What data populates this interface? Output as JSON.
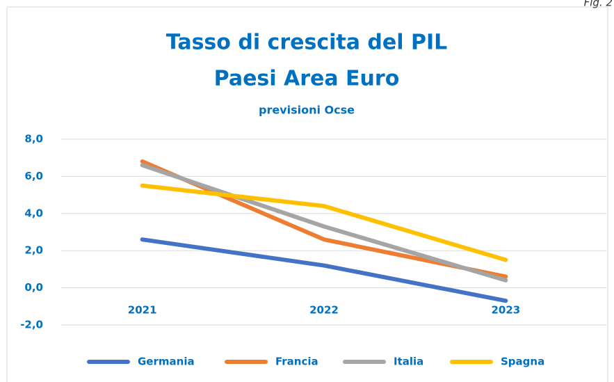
{
  "chart_data": {
    "type": "line",
    "corner_label": "Fig. 2",
    "title": "Tasso di crescita del PIL",
    "title_line2": "Paesi Area Euro",
    "subtitle": "previsioni Ocse",
    "categories": [
      "2021",
      "2022",
      "2023"
    ],
    "series": [
      {
        "name": "Germania",
        "color": "#4472c4",
        "values": [
          2.6,
          1.2,
          -0.7
        ]
      },
      {
        "name": "Francia",
        "color": "#ed7d31",
        "values": [
          6.8,
          2.6,
          0.6
        ]
      },
      {
        "name": "Italia",
        "color": "#a5a5a5",
        "values": [
          6.6,
          3.3,
          0.4
        ]
      },
      {
        "name": "Spagna",
        "color": "#ffc000",
        "values": [
          5.5,
          4.4,
          1.5
        ]
      }
    ],
    "ylim": [
      -2,
      8
    ],
    "yticks": [
      {
        "value": -2,
        "label": "-2,0"
      },
      {
        "value": 0,
        "label": "0,0"
      },
      {
        "value": 2,
        "label": "2,0"
      },
      {
        "value": 4,
        "label": "4,0"
      },
      {
        "value": 6,
        "label": "6,0"
      },
      {
        "value": 8,
        "label": "8,0"
      }
    ],
    "grid": true,
    "legend": "bottom"
  }
}
